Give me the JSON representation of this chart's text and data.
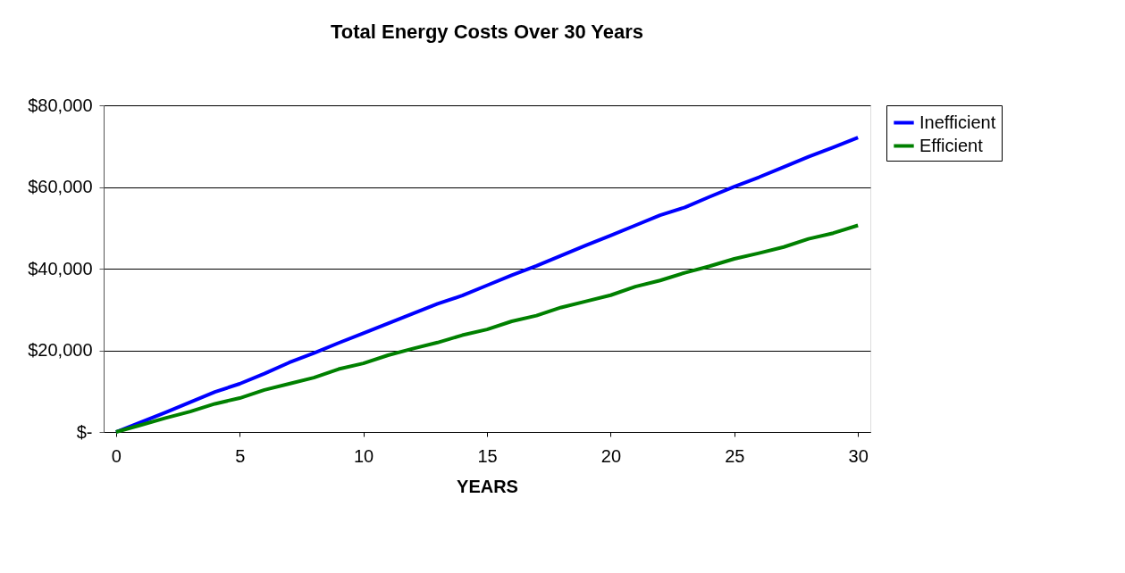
{
  "chart_data": {
    "type": "line",
    "title": "Total Energy Costs Over 30 Years",
    "xlabel": "YEARS",
    "x": [
      0,
      1,
      2,
      3,
      4,
      5,
      6,
      7,
      8,
      9,
      10,
      11,
      12,
      13,
      14,
      15,
      16,
      17,
      18,
      19,
      20,
      21,
      22,
      23,
      24,
      25,
      26,
      27,
      28,
      29,
      30
    ],
    "series": [
      {
        "name": "Inefficient",
        "color": "#0000ff",
        "values": [
          0,
          2400,
          4800,
          7300,
          9800,
          11800,
          14300,
          17000,
          19300,
          21800,
          24200,
          26600,
          29000,
          31400,
          33400,
          35900,
          38400,
          40700,
          43200,
          45700,
          48100,
          50600,
          53100,
          55000,
          57600,
          60100,
          62400,
          64900,
          67400,
          69700,
          72100
        ]
      },
      {
        "name": "Efficient",
        "color": "#008000",
        "values": [
          0,
          1700,
          3400,
          5000,
          6900,
          8300,
          10300,
          11800,
          13300,
          15400,
          16800,
          18800,
          20400,
          21900,
          23700,
          25100,
          27100,
          28500,
          30500,
          32000,
          33500,
          35600,
          37100,
          39000,
          40600,
          42400,
          43800,
          45300,
          47300,
          48700,
          50600
        ]
      }
    ],
    "xlim": [
      -0.5,
      30.5
    ],
    "xticks": [
      0,
      5,
      10,
      15,
      20,
      25,
      30
    ],
    "ylim": [
      0,
      80000
    ],
    "yticks": [
      {
        "value": 0,
        "label": "$-"
      },
      {
        "value": 20000,
        "label": "$20,000"
      },
      {
        "value": 40000,
        "label": "$40,000"
      },
      {
        "value": 60000,
        "label": "$60,000"
      },
      {
        "value": 80000,
        "label": "$80,000"
      }
    ],
    "grid": "y",
    "legend": "right",
    "marker": "none",
    "line_style": "solid"
  }
}
